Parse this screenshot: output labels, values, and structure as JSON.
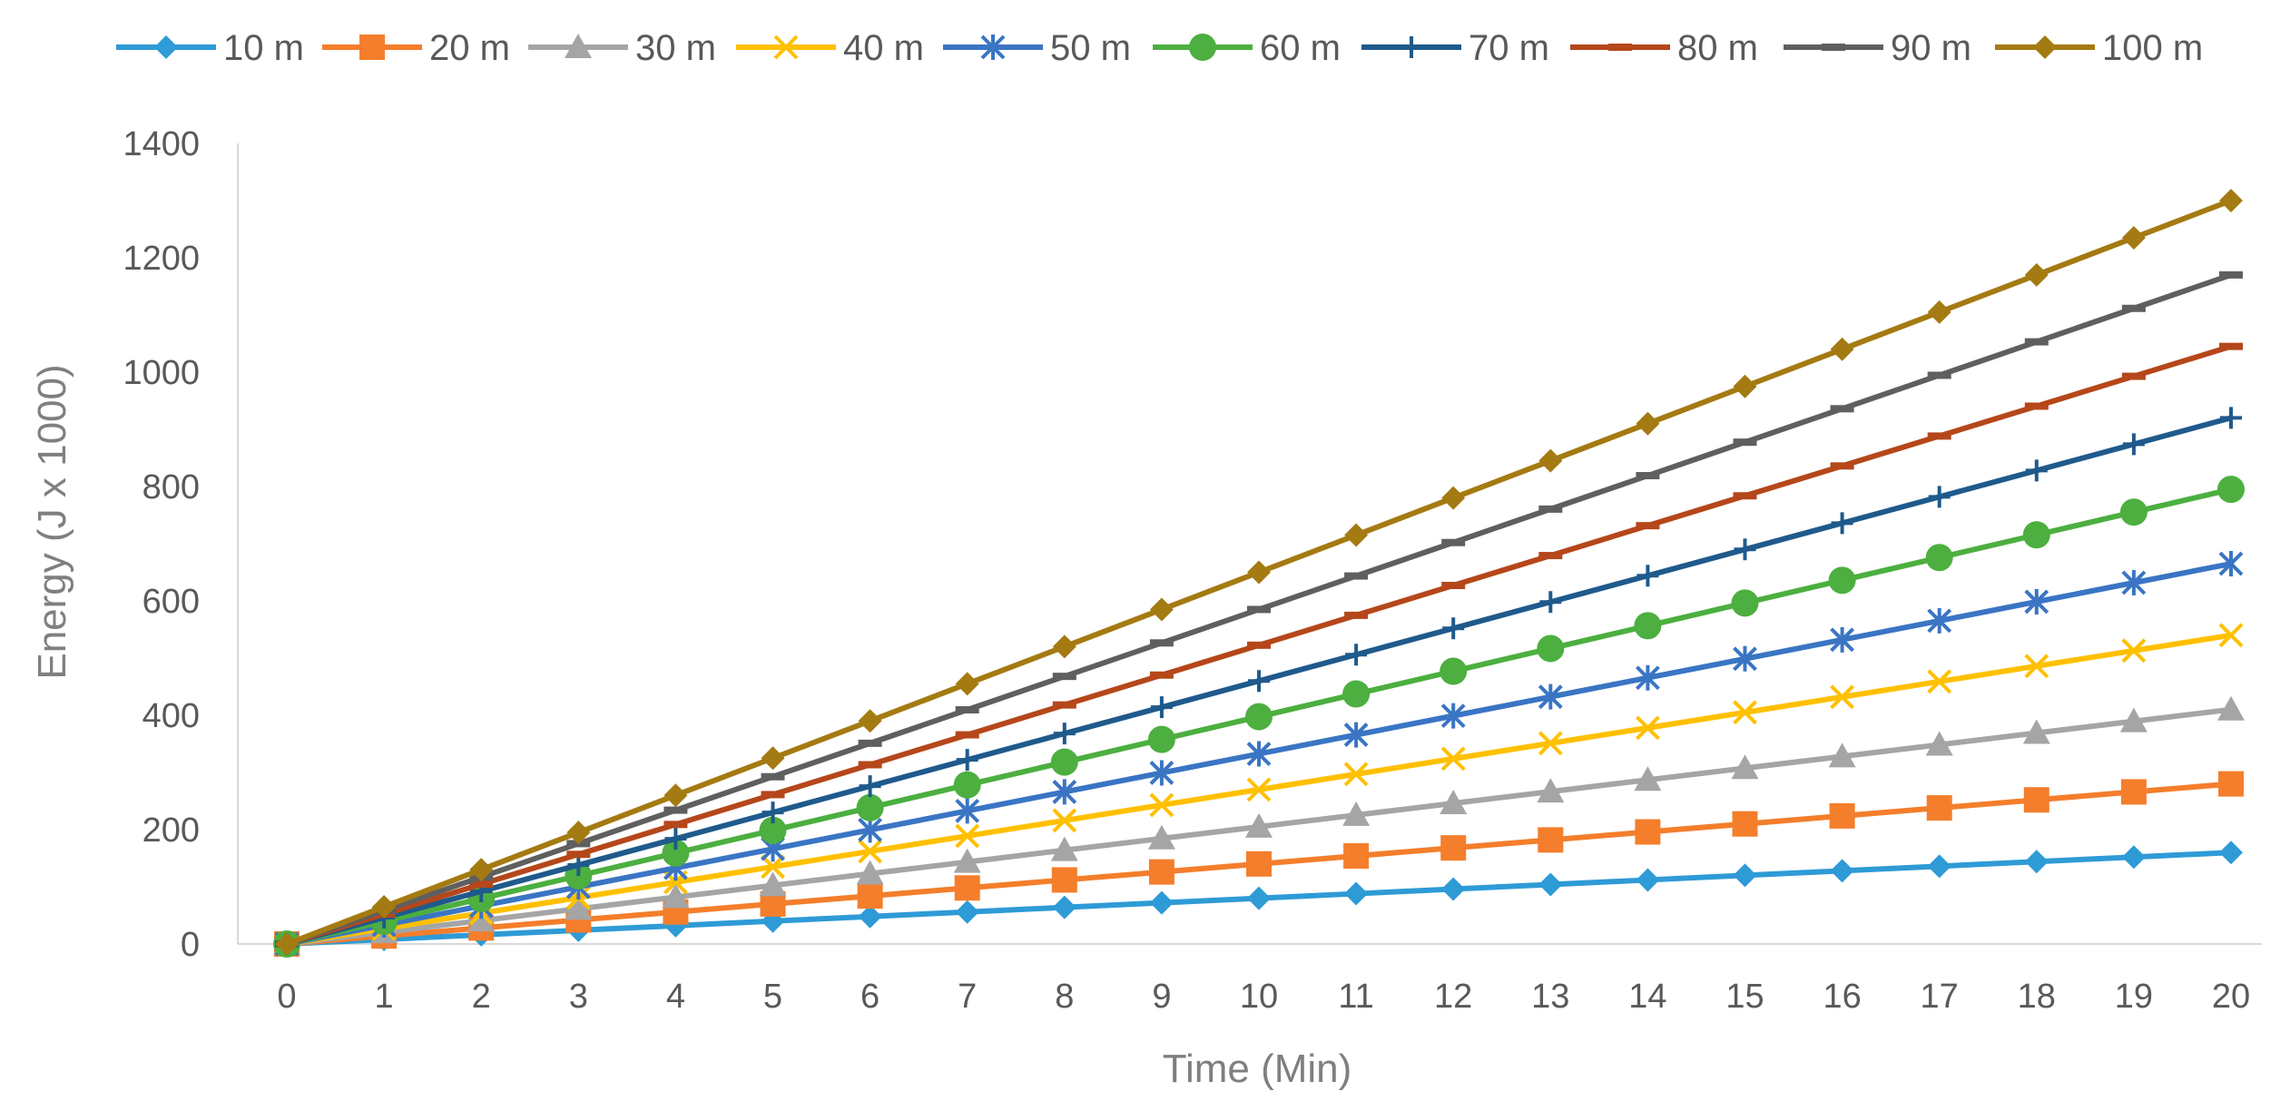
{
  "chart_data": {
    "type": "line",
    "title": "",
    "xlabel": "Time (Min)",
    "ylabel": "Energy (J x 1000)",
    "x": [
      0,
      1,
      2,
      3,
      4,
      5,
      6,
      7,
      8,
      9,
      10,
      11,
      12,
      13,
      14,
      15,
      16,
      17,
      18,
      19,
      20
    ],
    "xlim": [
      0,
      20
    ],
    "ylim": [
      0,
      1400
    ],
    "yticks": [
      0,
      200,
      400,
      600,
      800,
      1000,
      1200,
      1400
    ],
    "grid": false,
    "legend_position": "top",
    "series": [
      {
        "name": "10 m",
        "color": "#2E9BD6",
        "marker": "diamond",
        "values": [
          0,
          8,
          16,
          24,
          32,
          40,
          48,
          56,
          64,
          72,
          80,
          88,
          96,
          104,
          112,
          120,
          128,
          136,
          144,
          152,
          160
        ]
      },
      {
        "name": "20 m",
        "color": "#F47E2B",
        "marker": "square",
        "values": [
          0,
          14,
          28,
          42,
          56,
          70,
          84,
          98,
          112,
          126,
          140,
          154,
          168,
          182,
          196,
          210,
          224,
          238,
          252,
          266,
          280
        ]
      },
      {
        "name": "30 m",
        "color": "#A5A5A5",
        "marker": "triangle",
        "values": [
          0,
          20.5,
          41,
          61.5,
          82,
          102.5,
          123,
          143.5,
          164,
          184.5,
          205,
          225.5,
          246,
          266.5,
          287,
          307.5,
          328,
          348.5,
          369,
          389.5,
          410
        ]
      },
      {
        "name": "40 m",
        "color": "#FFC000",
        "marker": "x",
        "values": [
          0,
          27,
          54,
          81,
          108,
          135,
          162,
          189,
          216,
          243,
          270,
          297,
          324,
          351,
          378,
          405,
          432,
          459,
          486,
          513,
          540
        ]
      },
      {
        "name": "50 m",
        "color": "#3A75C4",
        "marker": "star",
        "values": [
          0,
          33.25,
          66.5,
          99.75,
          133,
          166.25,
          199.5,
          232.75,
          266,
          299.25,
          332.5,
          365.75,
          399,
          432.25,
          465.5,
          498.75,
          532,
          565.25,
          598.5,
          631.75,
          665
        ]
      },
      {
        "name": "60 m",
        "color": "#4CAF3F",
        "marker": "circle",
        "values": [
          0,
          39.75,
          79.5,
          119.25,
          159,
          198.75,
          238.5,
          278.25,
          318,
          357.75,
          397.5,
          437.25,
          477,
          516.75,
          556.5,
          596.25,
          636,
          675.75,
          715.5,
          755.25,
          795
        ]
      },
      {
        "name": "70 m",
        "color": "#1F5A8C",
        "marker": "plus",
        "values": [
          0,
          46,
          92,
          138,
          184,
          230,
          276,
          322,
          368,
          414,
          460,
          506,
          552,
          598,
          644,
          690,
          736,
          782,
          828,
          874,
          920
        ]
      },
      {
        "name": "80 m",
        "color": "#B5471A",
        "marker": "dash",
        "values": [
          0,
          52.25,
          104.5,
          156.75,
          209,
          261.25,
          313.5,
          365.75,
          418,
          470.25,
          522.5,
          574.75,
          627,
          679.25,
          731.5,
          783.75,
          836,
          888.25,
          940.5,
          992.75,
          1045
        ]
      },
      {
        "name": "90 m",
        "color": "#5F5F5F",
        "marker": "dash",
        "values": [
          0,
          58.5,
          117,
          175.5,
          234,
          292.5,
          351,
          409.5,
          468,
          526.5,
          585,
          643.5,
          702,
          760.5,
          819,
          877.5,
          936,
          994.5,
          1053,
          1111.5,
          1170
        ]
      },
      {
        "name": "100 m",
        "color": "#A47A12",
        "marker": "diamond",
        "values": [
          0,
          65,
          130,
          195,
          260,
          325,
          390,
          455,
          520,
          585,
          650,
          715,
          780,
          845,
          910,
          975,
          1040,
          1105,
          1170,
          1235,
          1300
        ]
      }
    ]
  }
}
